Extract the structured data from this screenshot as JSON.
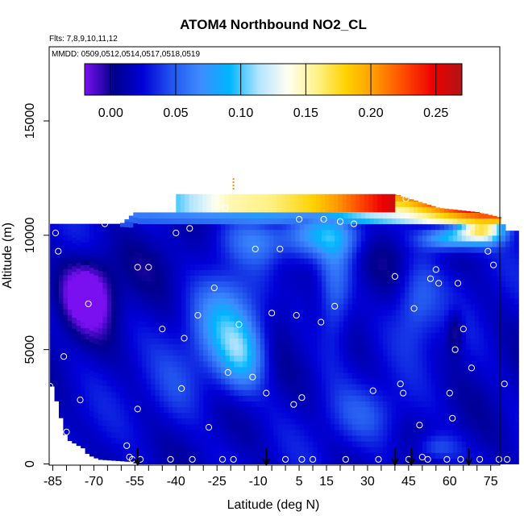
{
  "chart_data": {
    "type": "heatmap",
    "title": "ATOM4 Northbound NO2_CL",
    "flights_label": "Flts: 7,8,9,10,11,12",
    "dates_label": "MMDD: 0509,0512,0514,0517,0518,0519",
    "xlabel": "Latitude (deg N)",
    "ylabel": "Altitude (m)",
    "xlim": [
      -87,
      84
    ],
    "ylim": [
      0,
      17500
    ],
    "x_ticks": [
      -85,
      -70,
      -55,
      -40,
      -25,
      -10,
      5,
      15,
      30,
      45,
      60,
      75
    ],
    "x_tick_labels": [
      "-85",
      "-70",
      "-55",
      "-40",
      "-25",
      "-10",
      "5",
      "15",
      "30",
      "45",
      "60",
      "75"
    ],
    "y_ticks": [
      0,
      5000,
      10000,
      15000
    ],
    "y_tick_labels": [
      "0",
      "5000",
      "10000",
      "15000"
    ],
    "colorbar": {
      "min": -0.02,
      "max": 0.27,
      "ticks": [
        0.0,
        0.05,
        0.1,
        0.15,
        0.2,
        0.25
      ],
      "tick_labels": [
        "0.00",
        "0.05",
        "0.10",
        "0.15",
        "0.20",
        "0.25"
      ],
      "colors": [
        "#7a10f0",
        "#00008b",
        "#0000d8",
        "#2255ee",
        "#3d8cff",
        "#00b6ff",
        "#b3e4ff",
        "#fffff0",
        "#fff28a",
        "#ffd200",
        "#ff9a00",
        "#ff4a00",
        "#ee0000",
        "#b01515"
      ]
    },
    "coverage": {
      "max_altitude_lat": [
        -85,
        -60,
        -55,
        -15,
        40,
        56,
        71,
        78,
        81
      ],
      "max_altitude_m": [
        10500,
        10500,
        11000,
        11000,
        11800,
        11200,
        11000,
        10800,
        10200
      ],
      "min_altitude_lat": [
        -85,
        -80,
        -74,
        -72,
        -68,
        -56,
        -54,
        84
      ],
      "min_altitude_m": [
        3400,
        1100,
        700,
        400,
        200,
        100,
        0,
        0
      ]
    },
    "blobs": [
      {
        "lat": -75,
        "alt": 7500,
        "value": -0.015,
        "width_deg": 9,
        "height_m": 1400
      },
      {
        "lat": -70,
        "alt": 7200,
        "value": -0.01,
        "width_deg": 8,
        "height_m": 1700
      },
      {
        "lat": -22,
        "alt": 6000,
        "value": 0.08,
        "width_deg": 11,
        "height_m": 2200
      },
      {
        "lat": -15,
        "alt": 4700,
        "value": 0.07,
        "width_deg": 8,
        "height_m": 1500
      },
      {
        "lat": 18,
        "alt": 7600,
        "value": 0.06,
        "width_deg": 6,
        "height_m": 2400
      },
      {
        "lat": 48,
        "alt": 7200,
        "value": 0.055,
        "width_deg": 8,
        "height_m": 1800
      },
      {
        "lat": -10,
        "alt": 9800,
        "value": 0.055,
        "width_deg": 16,
        "height_m": 1000
      },
      {
        "lat": 15,
        "alt": 10000,
        "value": 0.07,
        "width_deg": 14,
        "height_m": 900
      },
      {
        "lat": 60,
        "alt": 9900,
        "value": 0.1,
        "width_deg": 10,
        "height_m": 500
      },
      {
        "lat": 72,
        "alt": 10300,
        "value": 0.16,
        "width_deg": 8,
        "height_m": 600
      },
      {
        "lat": 62,
        "alt": 5800,
        "value": -0.012,
        "width_deg": 3,
        "height_m": 900
      },
      {
        "lat": -40,
        "alt": 3200,
        "value": 0.035,
        "width_deg": 10,
        "height_m": 2000
      },
      {
        "lat": 30,
        "alt": 2200,
        "value": 0.04,
        "width_deg": 14,
        "height_m": 1200
      },
      {
        "lat": 55,
        "alt": 700,
        "value": 0.05,
        "width_deg": 8,
        "height_m": 600
      },
      {
        "lat": -50,
        "alt": 8800,
        "value": 0.012,
        "width_deg": 14,
        "height_m": 1500
      },
      {
        "lat": 35,
        "alt": 9000,
        "value": 0.01,
        "width_deg": 12,
        "height_m": 1600
      },
      {
        "lat": -2,
        "alt": 8000,
        "value": 0.008,
        "width_deg": 6,
        "height_m": 2600
      }
    ],
    "top_band": {
      "lat": [
        -40,
        -20,
        -5,
        10,
        25,
        40
      ],
      "value": [
        0.1,
        0.15,
        0.16,
        0.18,
        0.22,
        0.26
      ],
      "alt_from": 11000,
      "alt_to": 11800
    },
    "upper_band": {
      "lat": [
        -60,
        -30,
        -10,
        10,
        30,
        45,
        55,
        65,
        72,
        78
      ],
      "value": [
        0.07,
        0.08,
        0.09,
        0.08,
        0.13,
        0.16,
        0.2,
        0.24,
        0.26,
        0.26
      ],
      "alt_from": 10500,
      "alt_to": 11000
    },
    "samples": {
      "lat": [
        -86,
        -84,
        -83,
        -81,
        -80,
        -75,
        -72,
        -66,
        -58,
        -57,
        -56,
        -54,
        -54,
        -53,
        -50,
        -45,
        -42,
        -40,
        -38,
        -37,
        -35,
        -34,
        -32,
        -28,
        -26,
        -23,
        -22,
        -21,
        -19,
        -17,
        -12,
        -11,
        -7,
        -5,
        -2,
        0,
        3,
        4,
        5,
        6,
        6,
        10,
        13,
        14,
        18,
        20,
        22,
        25,
        32,
        34,
        40,
        42,
        43,
        44,
        45,
        47,
        49,
        50,
        52,
        53,
        55,
        56,
        59,
        60,
        61,
        62,
        63,
        64,
        65,
        68,
        71,
        72,
        74,
        76,
        78,
        80,
        81
      ],
      "alt": [
        3400,
        10100,
        9300,
        4700,
        1400,
        2800,
        7000,
        10500,
        800,
        300,
        200,
        8600,
        2400,
        200,
        8600,
        5900,
        200,
        10100,
        3300,
        5500,
        10300,
        200,
        6500,
        1600,
        7700,
        200,
        11200,
        4000,
        200,
        6100,
        3800,
        9400,
        3100,
        6600,
        9400,
        200,
        2600,
        6500,
        10700,
        2900,
        200,
        200,
        6200,
        10700,
        6900,
        10600,
        200,
        10500,
        3200,
        200,
        8200,
        3500,
        3100,
        11600,
        200,
        6800,
        1700,
        300,
        200,
        8100,
        8500,
        7900,
        200,
        3100,
        2000,
        5000,
        7900,
        200,
        5900,
        4200,
        200,
        11100,
        9300,
        8700,
        200,
        3500,
        200
      ],
      "marker": "open-circle",
      "color": "#ffffff"
    },
    "ground_arrows_lat": [
      -54,
      -7,
      40,
      46,
      67
    ],
    "arrow_color": "#000000",
    "marker_color": "#ff8c00"
  }
}
